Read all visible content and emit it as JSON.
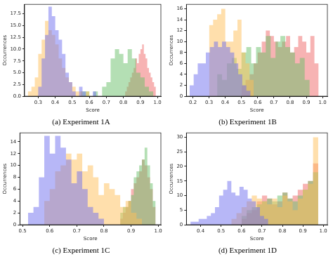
{
  "chart_data": [
    {
      "type": "histogram",
      "title": "(a) Experiment 1A",
      "x_label": "Score",
      "y_label": "Occurrences",
      "xlim": [
        0.22,
        1.02
      ],
      "xticks": [
        0.3,
        0.4,
        0.5,
        0.6,
        0.7,
        0.8,
        0.9,
        {
          "value": 1,
          "label": "1.0"
        }
      ],
      "ylim": [
        0,
        19.5
      ],
      "yticks": [
        {
          "value": 0,
          "label": "0.0"
        },
        2.5,
        {
          "value": 5,
          "label": "5.0"
        },
        7.5,
        {
          "value": 10,
          "label": "10.0"
        },
        12.5,
        {
          "value": 15,
          "label": "15.0"
        },
        17.5
      ],
      "grid": false,
      "series": [
        {
          "color": "#6f6ff0",
          "bins": [
            0.28,
            0.3,
            0.32,
            0.34,
            0.36,
            0.38,
            0.4,
            0.42,
            0.44,
            0.46,
            0.48,
            0.5,
            0.52,
            0.54,
            0.56,
            0.58,
            0.6,
            0.62,
            0.64,
            0.66,
            0.68
          ],
          "values": [
            1,
            0,
            2,
            8,
            13,
            19,
            17,
            14,
            12,
            9,
            5,
            3,
            1,
            0,
            2,
            1,
            0,
            0,
            1,
            0
          ]
        },
        {
          "color": "#ffbf5a",
          "bins": [
            0.22,
            0.24,
            0.26,
            0.28,
            0.3,
            0.32,
            0.34,
            0.36,
            0.38,
            0.4,
            0.42,
            0.44,
            0.46,
            0.48,
            0.5,
            0.52,
            0.54,
            0.56,
            0.58,
            0.6,
            0.62
          ],
          "values": [
            1,
            0,
            1,
            2,
            4,
            9,
            12,
            16,
            14,
            13,
            11,
            8,
            6,
            4,
            3,
            2,
            1,
            1,
            0,
            1
          ]
        },
        {
          "color": "#6abf6a",
          "bins": [
            0.5,
            0.525,
            0.55,
            0.575,
            0.6,
            0.625,
            0.65,
            0.675,
            0.7,
            0.725,
            0.75,
            0.775,
            0.8,
            0.825,
            0.85,
            0.875,
            0.9,
            0.925,
            0.95,
            0.975,
            1.0
          ],
          "values": [
            1,
            0,
            0,
            1,
            1,
            0,
            1,
            0,
            2,
            3,
            8,
            10,
            9,
            7,
            10,
            8,
            5,
            4,
            2,
            1
          ]
        },
        {
          "color": "#f06868",
          "bins": [
            0.8,
            0.81,
            0.82,
            0.83,
            0.84,
            0.85,
            0.86,
            0.87,
            0.88,
            0.89,
            0.9,
            0.91,
            0.92,
            0.93,
            0.94,
            0.95,
            0.96,
            0.97,
            0.98,
            0.99,
            1.0
          ],
          "values": [
            1,
            0,
            1,
            2,
            3,
            4,
            5,
            6,
            8,
            7,
            9,
            10,
            11,
            9,
            8,
            6,
            5,
            4,
            3,
            2
          ]
        }
      ]
    },
    {
      "type": "histogram",
      "title": "(b) Experiment 1B",
      "x_label": "Score",
      "y_label": "Occurrences",
      "xlim": [
        0.16,
        1.03
      ],
      "xticks": [
        0.2,
        0.3,
        0.4,
        0.5,
        0.6,
        0.7,
        0.8,
        0.9,
        {
          "value": 1,
          "label": "1.0"
        }
      ],
      "ylim": [
        0,
        16.8
      ],
      "yticks": [
        0,
        2,
        4,
        6,
        8,
        10,
        12,
        14,
        16
      ],
      "grid": false,
      "series": [
        {
          "color": "#6f6ff0",
          "bins": [
            0.18,
            0.205,
            0.23,
            0.255,
            0.28,
            0.305,
            0.33,
            0.355,
            0.38,
            0.405,
            0.43,
            0.455,
            0.48,
            0.505,
            0.53,
            0.555,
            0.58
          ],
          "values": [
            1,
            2,
            4,
            6,
            6,
            8,
            9,
            10,
            9,
            10,
            9,
            8,
            6,
            4,
            2,
            1
          ]
        },
        {
          "color": "#ffbf5a",
          "bins": [
            0.3,
            0.325,
            0.35,
            0.375,
            0.4,
            0.425,
            0.45,
            0.475,
            0.5,
            0.525,
            0.55,
            0.575,
            0.6
          ],
          "values": [
            6,
            13,
            14,
            15,
            16,
            10,
            10,
            12,
            14,
            8,
            6,
            3
          ]
        },
        {
          "color": "#6abf6a",
          "bins": [
            0.35,
            0.38,
            0.41,
            0.44,
            0.47,
            0.5,
            0.53,
            0.56,
            0.59,
            0.62,
            0.65,
            0.68,
            0.71,
            0.74,
            0.77,
            0.8,
            0.83,
            0.86,
            0.89,
            0.92,
            0.95
          ],
          "values": [
            2,
            4,
            3,
            6,
            7,
            5,
            8,
            9,
            6,
            9,
            8,
            11,
            7,
            10,
            11,
            9,
            8,
            6,
            7,
            3
          ]
        },
        {
          "color": "#f06868",
          "bins": [
            0.5,
            0.525,
            0.55,
            0.575,
            0.6,
            0.625,
            0.65,
            0.675,
            0.7,
            0.725,
            0.75,
            0.775,
            0.8,
            0.825,
            0.85,
            0.875,
            0.9,
            0.925,
            0.95,
            0.975,
            1.0
          ],
          "values": [
            1,
            2,
            3,
            4,
            6,
            8,
            10,
            12,
            11,
            10,
            9,
            10,
            11,
            8,
            9,
            11,
            10,
            8,
            11,
            6
          ]
        }
      ]
    },
    {
      "type": "histogram",
      "title": "(c) Experiment 1C",
      "x_label": "Score",
      "y_label": "Occurrences",
      "xlim": [
        0.49,
        1.01
      ],
      "xticks": [
        0.5,
        0.6,
        0.7,
        0.8,
        0.9,
        {
          "value": 1,
          "label": "1.0"
        }
      ],
      "ylim": [
        0,
        15.5
      ],
      "yticks": [
        0,
        2,
        4,
        6,
        8,
        10,
        12,
        14
      ],
      "grid": false,
      "series": [
        {
          "color": "#6f6ff0",
          "bins": [
            0.52,
            0.54,
            0.56,
            0.58,
            0.6,
            0.62,
            0.64,
            0.66,
            0.68,
            0.7,
            0.72,
            0.74,
            0.76,
            0.78,
            0.8,
            0.82
          ],
          "values": [
            1,
            2,
            3,
            8,
            15,
            12,
            15,
            13,
            11,
            7,
            9,
            6,
            3,
            2,
            1
          ]
        },
        {
          "color": "#ffbf5a",
          "bins": [
            0.58,
            0.6,
            0.62,
            0.64,
            0.66,
            0.68,
            0.7,
            0.72,
            0.74,
            0.76,
            0.78,
            0.8,
            0.82,
            0.84,
            0.86,
            0.88,
            0.9,
            0.92,
            0.94,
            0.96
          ],
          "values": [
            2,
            4,
            6,
            9,
            10,
            12,
            11,
            12,
            9,
            10,
            8,
            5,
            7,
            6,
            5,
            3,
            4,
            2,
            1
          ]
        },
        {
          "color": "#6abf6a",
          "bins": [
            0.86,
            0.87,
            0.88,
            0.89,
            0.9,
            0.91,
            0.92,
            0.93,
            0.94,
            0.95,
            0.96,
            0.97,
            0.98,
            0.99,
            1.0
          ],
          "values": [
            1,
            2,
            3,
            3,
            4,
            5,
            8,
            9,
            10,
            11,
            13,
            10,
            7,
            4
          ]
        },
        {
          "color": "#f06868",
          "bins": [
            0.86,
            0.87,
            0.88,
            0.89,
            0.9,
            0.91,
            0.92,
            0.93,
            0.94,
            0.95,
            0.96,
            0.97,
            0.98,
            0.99,
            1.0
          ],
          "values": [
            1,
            1,
            2,
            3,
            4,
            6,
            7,
            8,
            9,
            11,
            10,
            8,
            6,
            3
          ]
        }
      ]
    },
    {
      "type": "histogram",
      "title": "(d) Experiment 1D",
      "x_label": "Score",
      "y_label": "Occurrences",
      "xlim": [
        0.33,
        1.02
      ],
      "xticks": [
        0.4,
        0.5,
        0.6,
        0.7,
        0.8,
        0.9,
        {
          "value": 1,
          "label": "1.0"
        }
      ],
      "ylim": [
        0,
        31.5
      ],
      "yticks": [
        0,
        5,
        10,
        15,
        20,
        25,
        30
      ],
      "grid": false,
      "series": [
        {
          "color": "#6f6ff0",
          "bins": [
            0.35,
            0.37,
            0.39,
            0.41,
            0.43,
            0.45,
            0.47,
            0.49,
            0.51,
            0.53,
            0.55,
            0.57,
            0.59,
            0.61,
            0.63,
            0.65,
            0.67,
            0.69,
            0.71,
            0.73,
            0.75
          ],
          "values": [
            1,
            1,
            1,
            2,
            2,
            3,
            4,
            6,
            10,
            12,
            15,
            11,
            10,
            13,
            12,
            9,
            8,
            6,
            3,
            2
          ]
        },
        {
          "color": "#ffbf5a",
          "bins": [
            0.55,
            0.575,
            0.6,
            0.625,
            0.65,
            0.675,
            0.7,
            0.725,
            0.75,
            0.775,
            0.8,
            0.825,
            0.85,
            0.875,
            0.9,
            0.925,
            0.95,
            0.975,
            1.0
          ],
          "values": [
            1,
            2,
            4,
            6,
            8,
            10,
            9,
            8,
            7,
            9,
            6,
            10,
            8,
            5,
            9,
            12,
            14,
            30
          ]
        },
        {
          "color": "#6abf6a",
          "bins": [
            0.6,
            0.625,
            0.65,
            0.675,
            0.7,
            0.725,
            0.75,
            0.775,
            0.8,
            0.825,
            0.85,
            0.875,
            0.9,
            0.925,
            0.95,
            0.975,
            1.0
          ],
          "values": [
            2,
            3,
            5,
            6,
            7,
            8,
            9,
            8,
            10,
            11,
            9,
            8,
            10,
            12,
            15,
            18
          ]
        },
        {
          "color": "#f06868",
          "bins": [
            0.6,
            0.625,
            0.65,
            0.675,
            0.7,
            0.725,
            0.75,
            0.775,
            0.8,
            0.825,
            0.85,
            0.875,
            0.9,
            0.925,
            0.95,
            0.975,
            1.0
          ],
          "values": [
            1,
            2,
            4,
            5,
            8,
            10,
            9,
            7,
            8,
            11,
            9,
            10,
            12,
            14,
            15,
            21
          ]
        }
      ]
    }
  ]
}
